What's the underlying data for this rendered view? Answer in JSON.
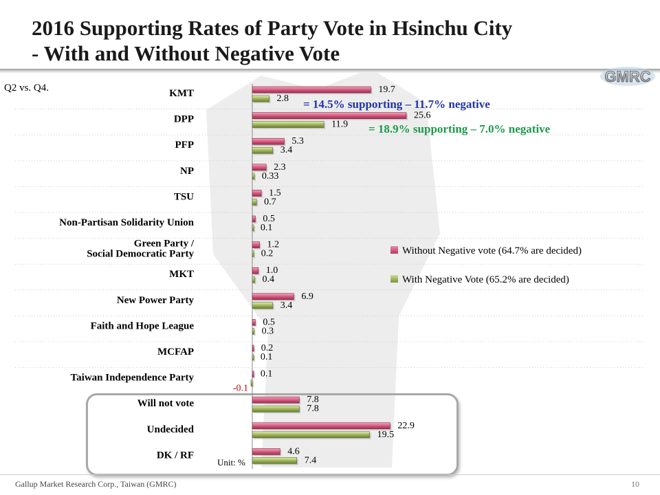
{
  "title_line1": "2016 Supporting Rates of Party Vote in Hsinchu City",
  "title_line2": "- With and Without Negative Vote",
  "subtitle": "Q2 vs. Q4.",
  "logo_text": "GMRC",
  "footer": "Gallup Market Research Corp., Taiwan (GMRC)",
  "page_number": "10",
  "unit_label": "Unit: %",
  "annotations": {
    "kmt": "= 14.5% supporting – 11.7% negative",
    "dpp": "= 18.9% supporting – 7.0% negative"
  },
  "colors": {
    "without_negative": "#d65a7e",
    "with_negative": "#a0b55a",
    "annotation_kmt": "#2233aa",
    "annotation_dpp": "#1a9a4a",
    "negative_value": "#cc0000"
  },
  "chart_data": {
    "type": "bar",
    "orientation": "horizontal",
    "categories": [
      "KMT",
      "DPP",
      "PFP",
      "NP",
      "TSU",
      "Non-Partisan Solidarity Union",
      "Green Party /\nSocial Democratic Party",
      "MKT",
      "New Power Party",
      "Faith and Hope League",
      "MCFAP",
      "Taiwan Independence Party",
      "Will not vote",
      "Undecided",
      "DK / RF"
    ],
    "series": [
      {
        "name": "Without Negative vote (64.7% are decided)",
        "values": [
          19.7,
          25.6,
          5.3,
          2.3,
          1.5,
          0.5,
          1.2,
          1.0,
          6.9,
          0.5,
          0.2,
          0.1,
          7.8,
          22.9,
          4.6
        ],
        "labels": [
          "19.7",
          "25.6",
          "5.3",
          "2.3",
          "1.5",
          "0.5",
          "1.2",
          "1.0",
          "6.9",
          "0.5",
          "0.2",
          "0.1",
          "7.8",
          "22.9",
          "4.6"
        ]
      },
      {
        "name": "With Negative Vote (65.2% are decided)",
        "values": [
          2.8,
          11.9,
          3.4,
          0.33,
          0.7,
          0.1,
          0.2,
          0.4,
          3.4,
          0.3,
          0.1,
          -0.1,
          7.8,
          19.5,
          7.4
        ],
        "labels": [
          "2.8",
          "11.9",
          "3.4",
          "0.33",
          "0.7",
          "0.1",
          "0.2",
          "0.4",
          "3.4",
          "0.3",
          "0.1",
          "-0.1",
          "7.8",
          "19.5",
          "7.4"
        ]
      }
    ],
    "legend_position": "right",
    "grid": false,
    "xlim": [
      0,
      26
    ]
  }
}
